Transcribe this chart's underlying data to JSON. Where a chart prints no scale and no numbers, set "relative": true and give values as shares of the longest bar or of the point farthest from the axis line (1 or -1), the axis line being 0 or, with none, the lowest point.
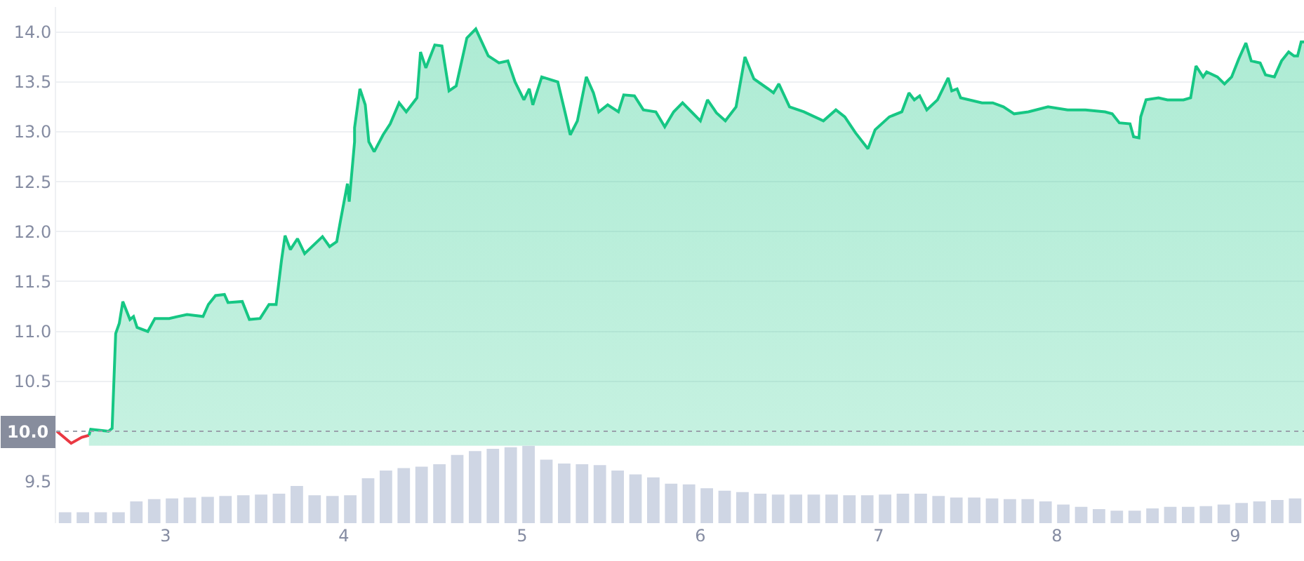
{
  "chart_data": [
    {
      "type": "line",
      "xlim": [
        2.386,
        9.386
      ],
      "ylim": [
        9.08,
        14.25
      ],
      "xticks": [
        3,
        4,
        5,
        6,
        7,
        8,
        9
      ],
      "yticks": [
        9.5,
        10.5,
        {
          "value": 11.0,
          "label": "11.0"
        },
        11.5,
        {
          "value": 12.0,
          "label": "12.0"
        },
        12.5,
        {
          "value": 13.0,
          "label": "13.0"
        },
        13.5,
        {
          "value": 14.0,
          "label": "14.0"
        }
      ],
      "grid": "y",
      "ref_lines": [
        {
          "axis": "y",
          "value": 10.0,
          "label": "10.0",
          "line_style": "dotted",
          "color": "#9aa0ab"
        }
      ],
      "series": [
        {
          "type": "line",
          "color": "#ea3943",
          "x": [
            2.39,
            2.47,
            2.53,
            2.57
          ],
          "values": [
            10.0,
            9.88,
            9.94,
            9.96
          ]
        },
        {
          "type": "area",
          "color": "#16c784",
          "x": [
            2.57,
            2.58,
            2.68,
            2.7,
            2.72,
            2.74,
            2.76,
            2.8,
            2.82,
            2.84,
            2.9,
            2.94,
            3.02,
            3.12,
            3.21,
            3.24,
            3.28,
            3.33,
            3.35,
            3.43,
            3.47,
            3.53,
            3.58,
            3.62,
            3.65,
            3.67,
            3.7,
            3.74,
            3.78,
            3.88,
            3.92,
            3.96,
            3.98,
            4.02,
            4.03,
            4.06,
            4.06,
            4.09,
            4.12,
            4.14,
            4.17,
            4.22,
            4.26,
            4.31,
            4.35,
            4.41,
            4.43,
            4.46,
            4.51,
            4.55,
            4.59,
            4.63,
            4.69,
            4.74,
            4.81,
            4.87,
            4.92,
            4.96,
            5.01,
            5.04,
            5.06,
            5.11,
            5.2,
            5.24,
            5.27,
            5.31,
            5.36,
            5.4,
            5.43,
            5.48,
            5.54,
            5.57,
            5.63,
            5.68,
            5.75,
            5.8,
            5.85,
            5.9,
            5.95,
            6.0,
            6.04,
            6.09,
            6.14,
            6.2,
            6.25,
            6.3,
            6.38,
            6.41,
            6.44,
            6.5,
            6.58,
            6.69,
            6.76,
            6.81,
            6.87,
            6.94,
            6.98,
            7.06,
            7.13,
            7.17,
            7.2,
            7.23,
            7.27,
            7.33,
            7.39,
            7.41,
            7.44,
            7.46,
            7.58,
            7.64,
            7.7,
            7.76,
            7.84,
            7.95,
            8.06,
            8.16,
            8.27,
            8.31,
            8.35,
            8.41,
            8.43,
            8.46,
            8.47,
            8.5,
            8.57,
            8.62,
            8.71,
            8.75,
            8.78,
            8.82,
            8.84,
            8.9,
            8.94,
            8.98,
            9.02,
            9.06,
            9.09,
            9.14,
            9.17,
            9.22,
            9.26,
            9.3,
            9.33,
            9.35,
            9.37,
            9.386
          ],
          "values": [
            9.96,
            10.02,
            10.0,
            10.03,
            10.98,
            11.08,
            11.3,
            11.12,
            11.15,
            11.04,
            11.0,
            11.13,
            11.13,
            11.17,
            11.15,
            11.27,
            11.36,
            11.37,
            11.29,
            11.3,
            11.12,
            11.13,
            11.27,
            11.27,
            11.71,
            11.96,
            11.82,
            11.93,
            11.78,
            11.95,
            11.85,
            11.9,
            12.1,
            12.48,
            12.3,
            12.9,
            13.04,
            13.43,
            13.27,
            12.9,
            12.8,
            12.97,
            13.08,
            13.29,
            13.2,
            13.34,
            13.8,
            13.64,
            13.87,
            13.86,
            13.41,
            13.46,
            13.94,
            14.03,
            13.76,
            13.69,
            13.71,
            13.5,
            13.32,
            13.43,
            13.27,
            13.55,
            13.5,
            13.2,
            12.97,
            13.11,
            13.55,
            13.39,
            13.2,
            13.27,
            13.2,
            13.37,
            13.36,
            13.22,
            13.2,
            13.05,
            13.2,
            13.29,
            13.2,
            13.11,
            13.32,
            13.19,
            13.11,
            13.25,
            13.75,
            13.53,
            13.43,
            13.39,
            13.48,
            13.25,
            13.2,
            13.11,
            13.22,
            13.15,
            12.99,
            12.83,
            13.02,
            13.15,
            13.2,
            13.39,
            13.32,
            13.36,
            13.22,
            13.32,
            13.54,
            13.41,
            13.43,
            13.34,
            13.29,
            13.29,
            13.25,
            13.18,
            13.2,
            13.25,
            13.22,
            13.22,
            13.2,
            13.18,
            13.09,
            13.08,
            12.95,
            12.94,
            13.15,
            13.32,
            13.34,
            13.32,
            13.32,
            13.34,
            13.66,
            13.55,
            13.6,
            13.55,
            13.48,
            13.55,
            13.73,
            13.89,
            13.71,
            13.69,
            13.57,
            13.55,
            13.71,
            13.8,
            13.76,
            13.76,
            13.9,
            13.9
          ]
        }
      ]
    },
    {
      "type": "bar",
      "relative": true,
      "grid": false,
      "categories": [
        null,
        null,
        null,
        null,
        null,
        null,
        null,
        null,
        null,
        null,
        null,
        null,
        null,
        null,
        null,
        null,
        null,
        null,
        null,
        null,
        null,
        null,
        null,
        null,
        null,
        null,
        null,
        null,
        null,
        null,
        null,
        null,
        null,
        null,
        null,
        null,
        null,
        null,
        null,
        null,
        null,
        null,
        null,
        null,
        null,
        null,
        null,
        null,
        null,
        null,
        null,
        null,
        null,
        null,
        null,
        null,
        null,
        null,
        null,
        null,
        null,
        null,
        null,
        null,
        null,
        null,
        null,
        null,
        null,
        null
      ],
      "series": [
        {
          "color": "#cfd6e4",
          "values": [
            0.14,
            0.14,
            0.14,
            0.14,
            0.28,
            0.31,
            0.32,
            0.33,
            0.34,
            0.35,
            0.36,
            0.37,
            0.38,
            0.48,
            0.36,
            0.35,
            0.36,
            0.58,
            0.68,
            0.71,
            0.73,
            0.76,
            0.88,
            0.93,
            0.96,
            0.98,
            1.0,
            0.82,
            0.77,
            0.76,
            0.75,
            0.68,
            0.63,
            0.59,
            0.51,
            0.5,
            0.45,
            0.42,
            0.4,
            0.38,
            0.37,
            0.37,
            0.37,
            0.37,
            0.36,
            0.36,
            0.37,
            0.38,
            0.38,
            0.35,
            0.33,
            0.33,
            0.32,
            0.31,
            0.31,
            0.28,
            0.24,
            0.21,
            0.18,
            0.16,
            0.16,
            0.19,
            0.21,
            0.21,
            0.22,
            0.24,
            0.26,
            0.28,
            0.3,
            0.32
          ]
        }
      ]
    }
  ]
}
